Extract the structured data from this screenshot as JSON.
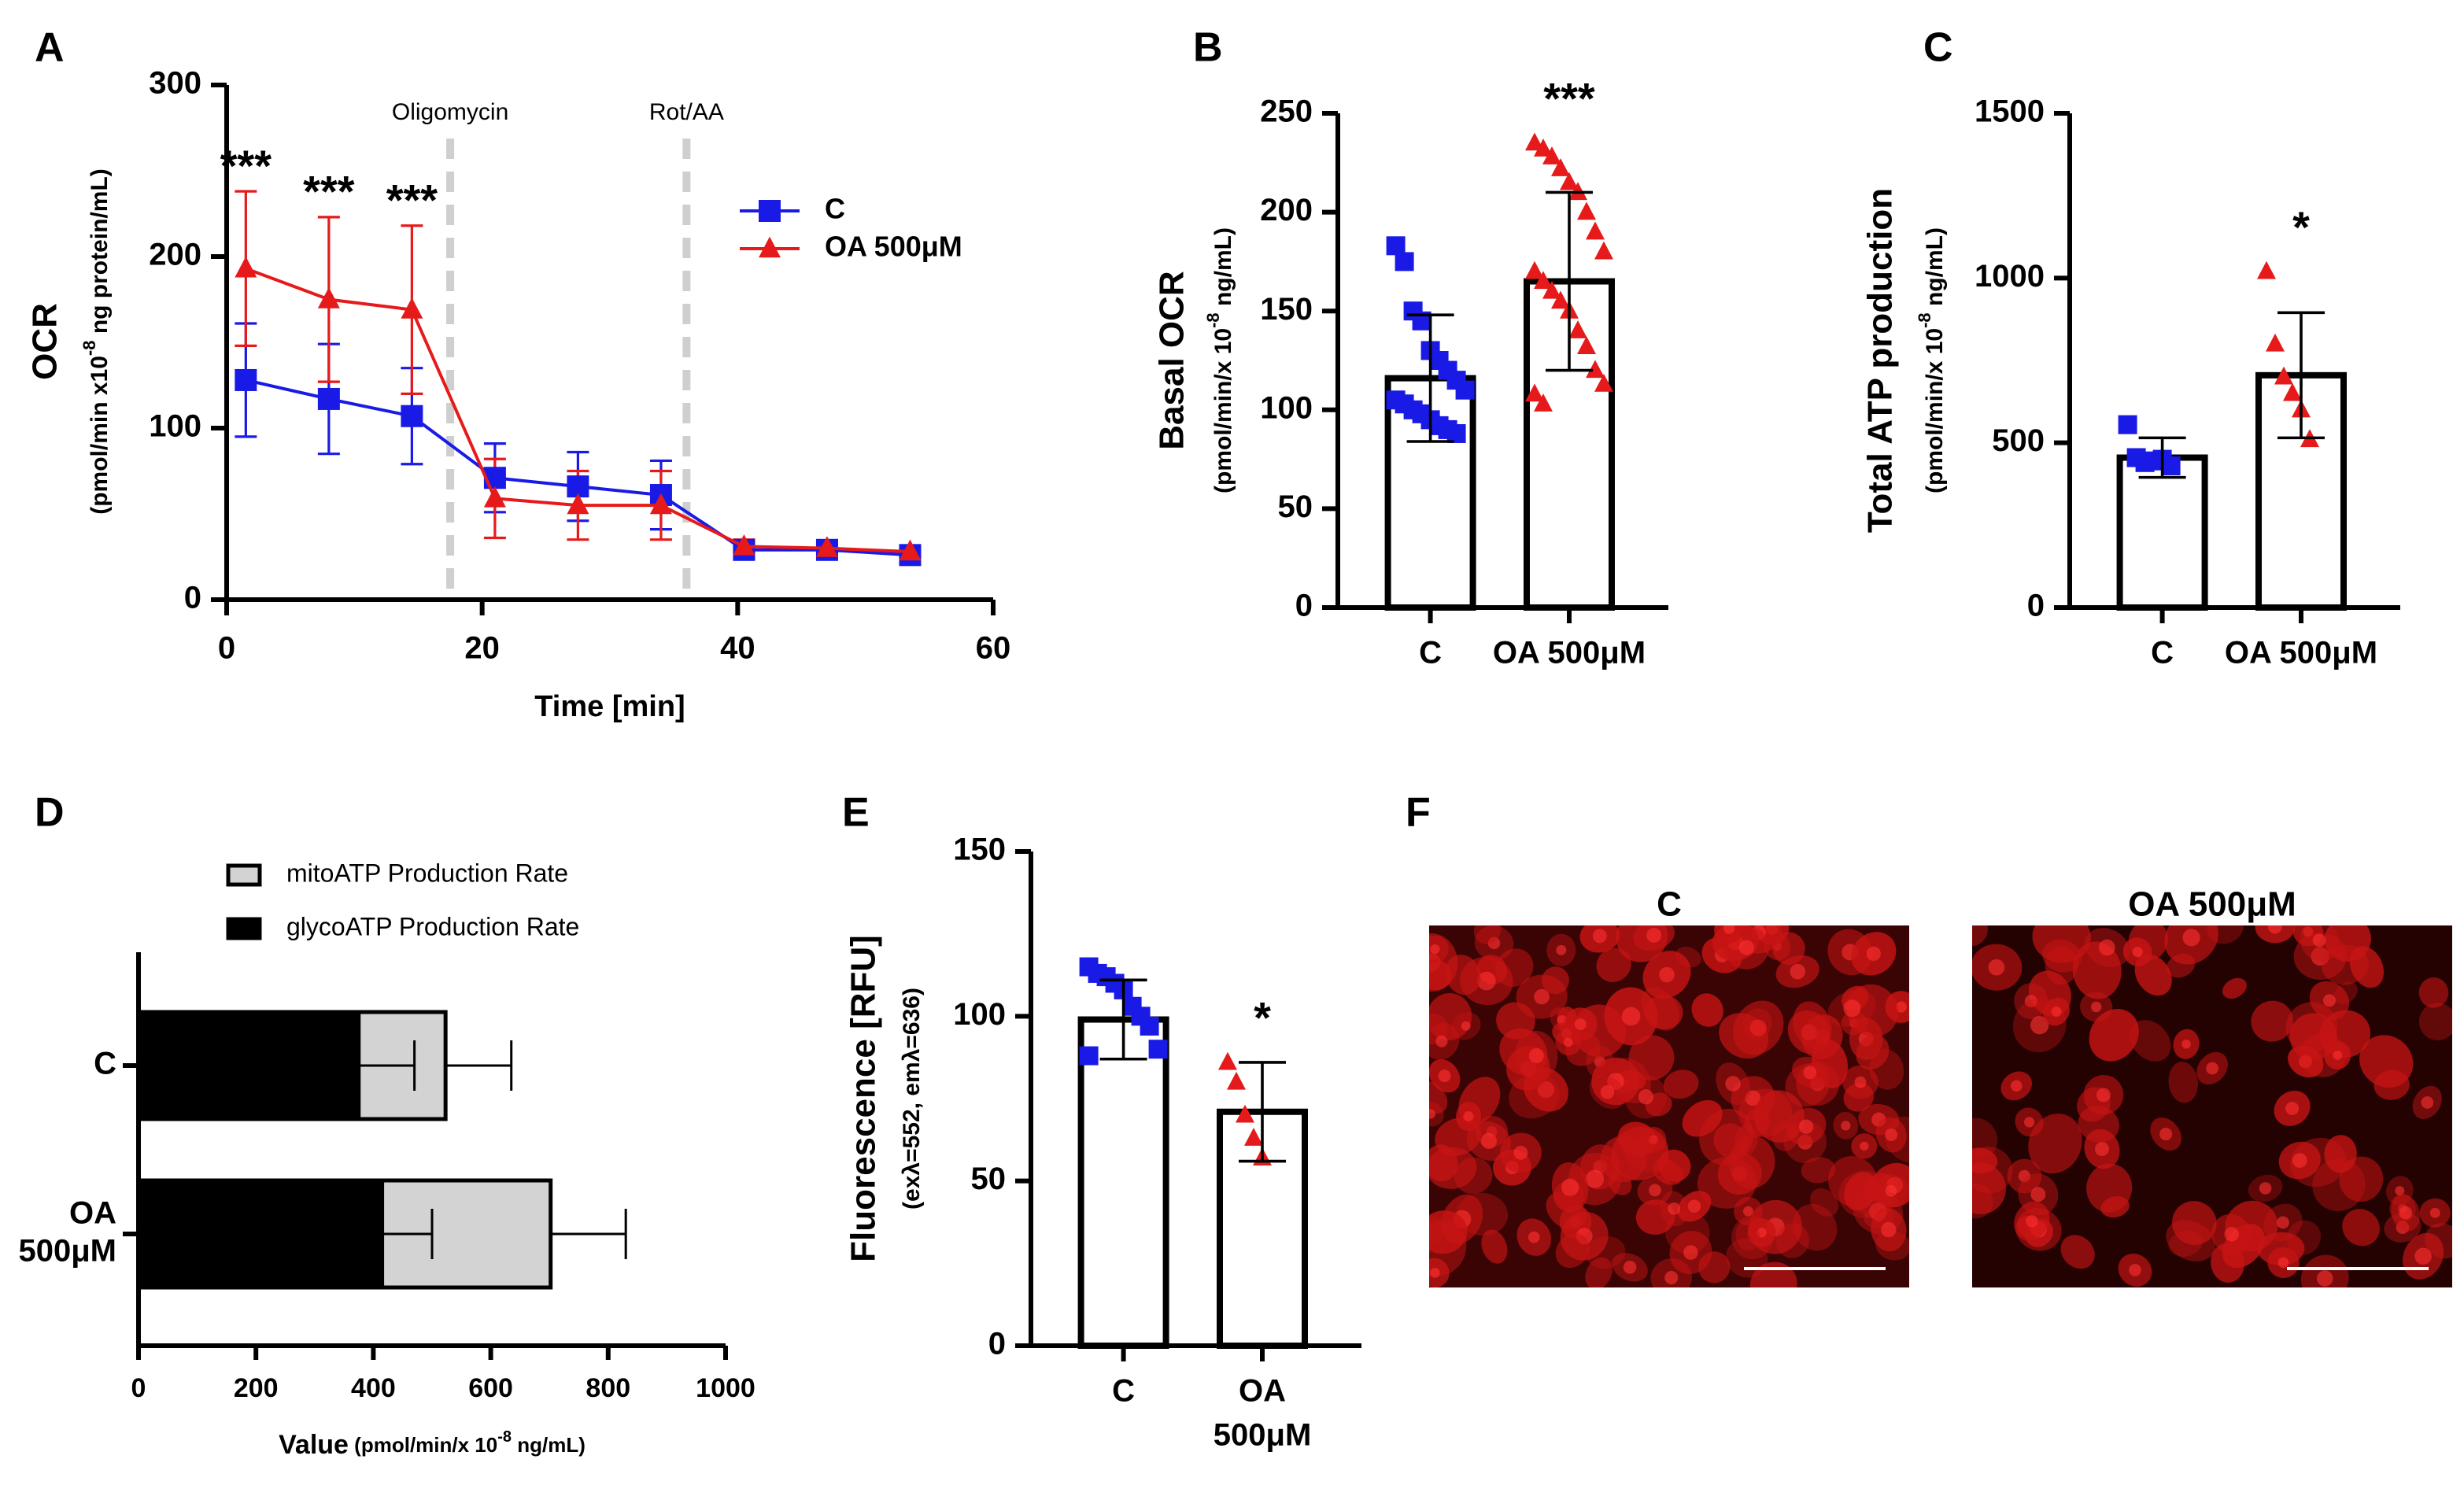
{
  "chart_data": [
    {
      "type": "line",
      "panel": "A",
      "x": [
        1.5,
        8,
        14.5,
        21,
        27.5,
        34,
        40.5,
        47,
        53.5
      ],
      "series": [
        {
          "name": "C",
          "color": "#1a1ae6",
          "marker": "square",
          "values": [
            128,
            117,
            107,
            71,
            66,
            61,
            29,
            29,
            26
          ],
          "errors": [
            33,
            32,
            28,
            20,
            20,
            20,
            4,
            3,
            3
          ]
        },
        {
          "name": "OA 500μM",
          "color": "#e61a1a",
          "marker": "triangle",
          "values": [
            193,
            175,
            169,
            59,
            55,
            55,
            31,
            30,
            28
          ],
          "errors": [
            45,
            48,
            49,
            23,
            20,
            20,
            4,
            3,
            3
          ]
        }
      ],
      "xlim": [
        0,
        60
      ],
      "xticks": [
        0,
        20,
        40,
        60
      ],
      "ylim": [
        0,
        300
      ],
      "yticks": [
        0,
        100,
        200,
        300
      ],
      "x_label": "Time [min]",
      "y_label": "OCR",
      "y_sublabel": [
        "(pmol/min x10",
        "-8",
        " ng protein/mL)"
      ],
      "treatments": [
        {
          "text": "Oligomycin",
          "x": 17.5
        },
        {
          "text": "Rot/AA",
          "x": 36
        }
      ],
      "significance": [
        {
          "text": "***",
          "x": 1.5
        },
        {
          "text": "***",
          "x": 8
        },
        {
          "text": "***",
          "x": 14.5
        }
      ]
    },
    {
      "type": "bar",
      "panel": "B",
      "categories": [
        "C",
        "OA 500μM"
      ],
      "values": [
        116,
        165
      ],
      "errors": [
        32,
        45
      ],
      "points": [
        [
          183,
          175,
          150,
          145,
          130,
          125,
          120,
          115,
          110,
          105,
          103,
          100,
          98,
          95,
          92,
          90,
          88
        ],
        [
          235,
          232,
          228,
          222,
          215,
          210,
          200,
          190,
          180,
          170,
          165,
          160,
          155,
          150,
          140,
          132,
          120,
          113,
          108,
          103
        ]
      ],
      "colors": [
        "#1a1ae6",
        "#e61a1a"
      ],
      "markers": [
        "square",
        "triangle"
      ],
      "ylim": [
        0,
        250
      ],
      "yticks": [
        0,
        50,
        100,
        150,
        200,
        250
      ],
      "y_label": "Basal OCR",
      "y_sublabel": [
        "(pmol/min/x 10",
        "-8",
        " ng/mL)"
      ],
      "significance": [
        {
          "text": "***",
          "category": "OA 500μM"
        }
      ]
    },
    {
      "type": "bar",
      "panel": "C",
      "categories": [
        "C",
        "OA 500μM"
      ],
      "values": [
        455,
        705
      ],
      "errors": [
        60,
        190
      ],
      "points": [
        [
          555,
          455,
          440,
          445,
          450,
          430
        ],
        [
          1020,
          800,
          700,
          650,
          600,
          510
        ]
      ],
      "colors": [
        "#1a1ae6",
        "#e61a1a"
      ],
      "markers": [
        "square",
        "triangle"
      ],
      "ylim": [
        0,
        1500
      ],
      "yticks": [
        0,
        500,
        1000,
        1500
      ],
      "y_label": "Total ATP production",
      "y_sublabel": [
        "(pmol/min/x 10",
        "-8",
        " ng/mL)"
      ],
      "significance": [
        {
          "text": "*",
          "category": "OA 500μM"
        }
      ]
    },
    {
      "type": "hbar_stacked",
      "panel": "D",
      "categories": [
        [
          "C"
        ],
        [
          "OA",
          "500μM"
        ]
      ],
      "series": [
        {
          "name": "glycoATP Production Rate",
          "color": "#000000",
          "values": [
            375,
            415
          ],
          "errors": [
            95,
            85
          ]
        },
        {
          "name": "mitoATP Production Rate",
          "color": "#d3d3d3",
          "values": [
            148,
            287
          ],
          "errors": [
            112,
            128
          ]
        }
      ],
      "xlim": [
        0,
        1000
      ],
      "xticks": [
        0,
        200,
        400,
        600,
        800,
        1000
      ],
      "x_label": "Value",
      "x_sublabel": [
        " (pmol/min/x 10",
        "-8",
        " ng/mL)"
      ]
    },
    {
      "type": "bar",
      "panel": "E",
      "categories": [
        [
          "C"
        ],
        [
          "OA",
          "500μM"
        ]
      ],
      "values": [
        99,
        71
      ],
      "errors": [
        12,
        15
      ],
      "points": [
        [
          115,
          113,
          112,
          110,
          108,
          103,
          100,
          97,
          90,
          88
        ],
        [
          86,
          80,
          70,
          63,
          57
        ]
      ],
      "colors": [
        "#1a1ae6",
        "#e61a1a"
      ],
      "markers": [
        "square",
        "triangle"
      ],
      "ylim": [
        0,
        150
      ],
      "yticks": [
        0,
        50,
        100,
        150
      ],
      "y_label": "Fluorescence [RFU]",
      "y_sublabel": [
        "(exλ=552, emλ=636)"
      ],
      "significance": [
        {
          "text": "*",
          "category": 1
        }
      ]
    }
  ],
  "figure_f": {
    "panel": "F",
    "titles": [
      "C",
      "OA 500μM"
    ]
  }
}
